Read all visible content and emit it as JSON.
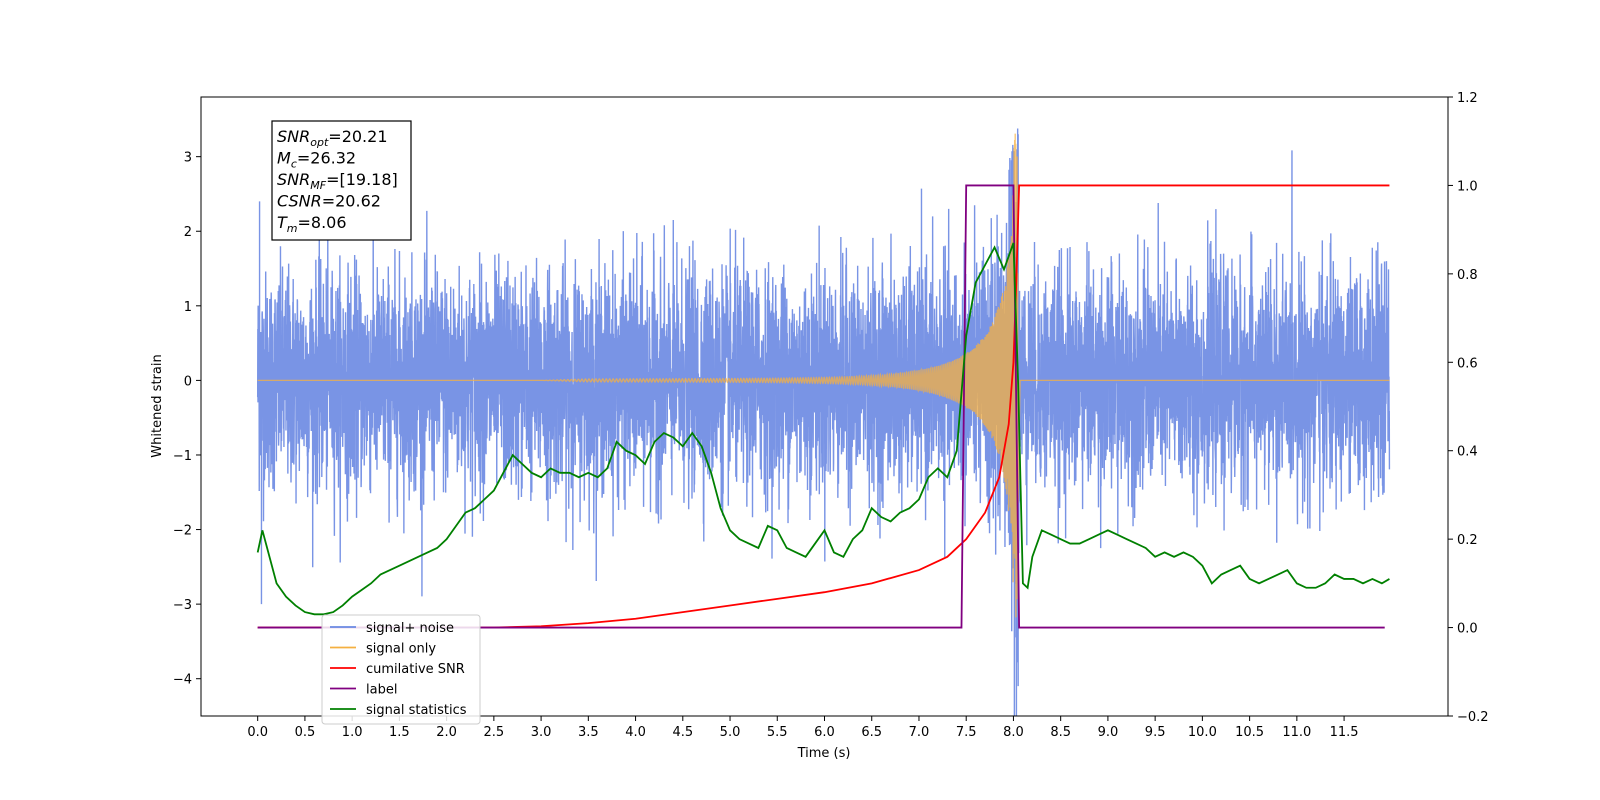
{
  "chart_data": {
    "type": "line",
    "xlabel": "Time (s)",
    "ylabel": "Whitened strain",
    "xlim": [
      -0.6,
      12.6
    ],
    "ylim": [
      -4.5,
      3.8
    ],
    "y2lim": [
      -0.2,
      1.2
    ],
    "grid": false,
    "legend_position": "lower-left",
    "x_ticks": [
      0.0,
      0.5,
      1.0,
      1.5,
      2.0,
      2.5,
      3.0,
      3.5,
      4.0,
      4.5,
      5.0,
      5.5,
      6.0,
      6.5,
      7.0,
      7.5,
      8.0,
      8.5,
      9.0,
      9.5,
      10.0,
      10.5,
      11.0,
      11.5
    ],
    "x_tick_labels": [
      "0.0",
      "0.5",
      "1.0",
      "1.5",
      "2.0",
      "2.5",
      "3.0",
      "3.5",
      "4.0",
      "4.5",
      "5.0",
      "5.5",
      "6.0",
      "6.5",
      "7.0",
      "7.5",
      "8.0",
      "8.5",
      "9.0",
      "9.5",
      "10.0",
      "10.5",
      "11.0",
      "11.5"
    ],
    "y_ticks": [
      3,
      2,
      1,
      0,
      -1,
      -2,
      -3,
      -4
    ],
    "y_tick_labels": [
      "3",
      "2",
      "1",
      "0",
      "−1",
      "−2",
      "−3",
      "−4"
    ],
    "y2_ticks": [
      1.2,
      1.0,
      0.8,
      0.6,
      0.4,
      0.2,
      0.0,
      -0.2
    ],
    "y2_tick_labels": [
      "1.2",
      "1.0",
      "0.8",
      "0.6",
      "0.4",
      "0.2",
      "0.0",
      "−0.2"
    ],
    "annotation": {
      "lines": [
        {
          "sym": "SNR",
          "sub": "opt",
          "value": "=20.21"
        },
        {
          "sym": "M",
          "sub": "c",
          "value": "=26.32"
        },
        {
          "sym": "SNR",
          "sub": "MF",
          "value": "=[19.18]"
        },
        {
          "sym": "CSNR",
          "sub": "",
          "value": "=20.62"
        },
        {
          "sym": "T",
          "sub": "m",
          "value": "=8.06"
        }
      ]
    },
    "legend": [
      {
        "label": "signal+ noise",
        "color": "#6a88e2"
      },
      {
        "label": "signal only",
        "color": "#f5b041"
      },
      {
        "label": "cumilative SNR",
        "color": "#ff0000"
      },
      {
        "label": "label",
        "color": "#800080"
      },
      {
        "label": "signal statistics",
        "color": "#008000"
      }
    ],
    "series": [
      {
        "name": "signal+ noise",
        "axis": "left",
        "color": "#6a88e2",
        "noise_std": 0.72,
        "t_start": 0.0,
        "t_end": 11.98,
        "notable_peaks": [
          [
            0.02,
            2.4
          ],
          [
            0.04,
            -3.0
          ],
          [
            8.05,
            -4.1
          ],
          [
            8.05,
            3.3
          ]
        ]
      },
      {
        "name": "signal only",
        "axis": "left",
        "color": "#f5b041",
        "chirp_start": 3.5,
        "merger_time": 8.05,
        "peak_amplitude": 3.5
      },
      {
        "name": "cumilative SNR",
        "axis": "right",
        "color": "#ff0000",
        "x": [
          0.0,
          2.5,
          3.0,
          3.5,
          4.0,
          4.5,
          5.0,
          5.5,
          6.0,
          6.5,
          7.0,
          7.3,
          7.5,
          7.7,
          7.85,
          7.95,
          8.0,
          8.03,
          8.06,
          11.98
        ],
        "y": [
          0.0,
          0.0,
          0.003,
          0.01,
          0.02,
          0.035,
          0.05,
          0.065,
          0.08,
          0.1,
          0.13,
          0.16,
          0.2,
          0.26,
          0.34,
          0.46,
          0.6,
          0.78,
          1.0,
          1.0
        ]
      },
      {
        "name": "label",
        "axis": "right",
        "color": "#800080",
        "x": [
          0.0,
          7.45,
          7.5,
          8.0,
          8.06,
          11.93
        ],
        "y": [
          0.0,
          0.0,
          1.0,
          1.0,
          0.0,
          0.0
        ]
      },
      {
        "name": "signal statistics",
        "axis": "right",
        "color": "#008000",
        "x": [
          0.0,
          0.05,
          0.1,
          0.2,
          0.3,
          0.4,
          0.5,
          0.6,
          0.7,
          0.8,
          0.9,
          1.0,
          1.1,
          1.2,
          1.3,
          1.5,
          1.7,
          1.9,
          2.0,
          2.1,
          2.2,
          2.3,
          2.4,
          2.5,
          2.6,
          2.7,
          2.8,
          2.9,
          3.0,
          3.1,
          3.2,
          3.3,
          3.4,
          3.5,
          3.6,
          3.7,
          3.8,
          3.9,
          4.0,
          4.1,
          4.2,
          4.3,
          4.4,
          4.5,
          4.6,
          4.7,
          4.8,
          4.9,
          5.0,
          5.1,
          5.2,
          5.3,
          5.4,
          5.5,
          5.6,
          5.7,
          5.8,
          5.9,
          6.0,
          6.1,
          6.2,
          6.3,
          6.4,
          6.5,
          6.6,
          6.7,
          6.8,
          6.9,
          7.0,
          7.1,
          7.2,
          7.3,
          7.4,
          7.5,
          7.6,
          7.7,
          7.8,
          7.9,
          8.0,
          8.05,
          8.1,
          8.15,
          8.2,
          8.3,
          8.4,
          8.5,
          8.6,
          8.7,
          8.8,
          8.9,
          9.0,
          9.1,
          9.2,
          9.3,
          9.4,
          9.5,
          9.6,
          9.7,
          9.8,
          9.9,
          10.0,
          10.1,
          10.2,
          10.3,
          10.4,
          10.5,
          10.6,
          10.7,
          10.8,
          10.9,
          11.0,
          11.1,
          11.2,
          11.3,
          11.4,
          11.5,
          11.6,
          11.7,
          11.8,
          11.9,
          11.98
        ],
        "y": [
          0.17,
          0.22,
          0.18,
          0.1,
          0.07,
          0.05,
          0.035,
          0.03,
          0.03,
          0.035,
          0.05,
          0.07,
          0.085,
          0.1,
          0.12,
          0.14,
          0.16,
          0.18,
          0.2,
          0.23,
          0.26,
          0.27,
          0.29,
          0.31,
          0.35,
          0.39,
          0.37,
          0.35,
          0.34,
          0.36,
          0.35,
          0.35,
          0.34,
          0.35,
          0.34,
          0.36,
          0.42,
          0.4,
          0.39,
          0.37,
          0.42,
          0.44,
          0.43,
          0.41,
          0.44,
          0.41,
          0.35,
          0.27,
          0.22,
          0.2,
          0.19,
          0.18,
          0.23,
          0.22,
          0.18,
          0.17,
          0.16,
          0.19,
          0.22,
          0.17,
          0.16,
          0.2,
          0.22,
          0.27,
          0.25,
          0.24,
          0.26,
          0.27,
          0.29,
          0.34,
          0.36,
          0.34,
          0.4,
          0.66,
          0.78,
          0.82,
          0.86,
          0.81,
          0.87,
          0.55,
          0.1,
          0.09,
          0.16,
          0.22,
          0.21,
          0.2,
          0.19,
          0.19,
          0.2,
          0.21,
          0.22,
          0.21,
          0.2,
          0.19,
          0.18,
          0.16,
          0.17,
          0.16,
          0.17,
          0.16,
          0.14,
          0.1,
          0.12,
          0.13,
          0.14,
          0.11,
          0.1,
          0.11,
          0.12,
          0.13,
          0.1,
          0.09,
          0.09,
          0.1,
          0.12,
          0.11,
          0.11,
          0.1,
          0.11,
          0.1,
          0.11
        ]
      }
    ]
  }
}
